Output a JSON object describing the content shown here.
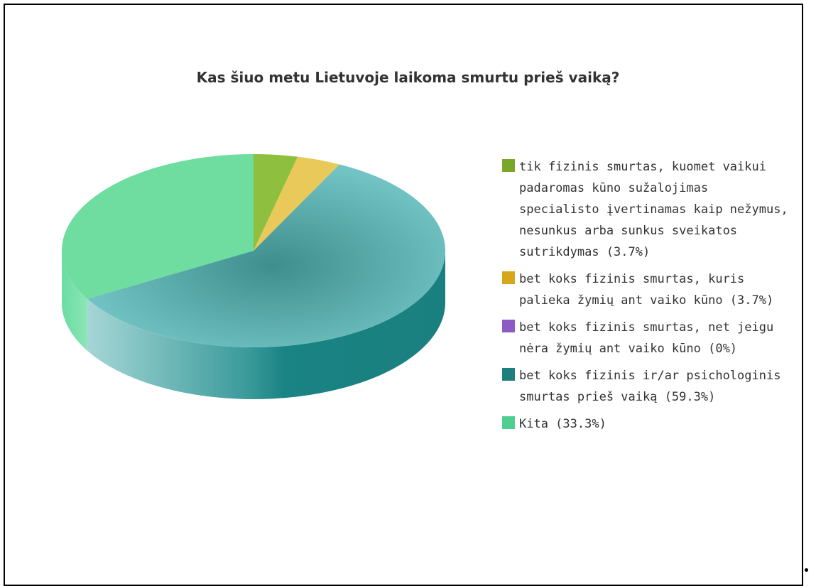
{
  "chart_data": {
    "type": "pie",
    "title": "Kas šiuo metu Lietuvoje laikoma smurtu prieš vaiką?",
    "slices": [
      {
        "label": "tik fizinis smurtas, kuomet vaikui padaromas kūno sužalojimas specialisto įvertinamas kaip nežymus, nesunkus arba sunkus sveikatos sutrikdymas (3.7%)",
        "value": 3.7,
        "color": "#7ba62c",
        "top_color": "#8fbf3e",
        "side_color": "#6d9127"
      },
      {
        "label": "bet koks fizinis smurtas, kuris palieka žymių ant vaiko kūno (3.7%)",
        "value": 3.7,
        "color": "#d6a71a",
        "top_color": "#e9c95a",
        "side_color": "#c39a1a"
      },
      {
        "label": "bet koks fizinis smurtas, net jeigu nėra žymių ant vaiko kūno (0%)",
        "value": 0,
        "color": "#8e5bc4",
        "top_color": "#9b6cd0",
        "side_color": "#7a4aad"
      },
      {
        "label": "bet koks fizinis ir/ar psichologinis smurtas prieš vaiką (59.3%)",
        "value": 59.3,
        "color": "#1e7f7f",
        "top_color": "#6cbcbc",
        "side_color": "#198080"
      },
      {
        "label": "Kita (33.3%)",
        "value": 33.3,
        "color": "#4fcf8f",
        "top_color": "#6fdca0",
        "side_color": "#5fcf93"
      }
    ],
    "legend_position": "right"
  }
}
